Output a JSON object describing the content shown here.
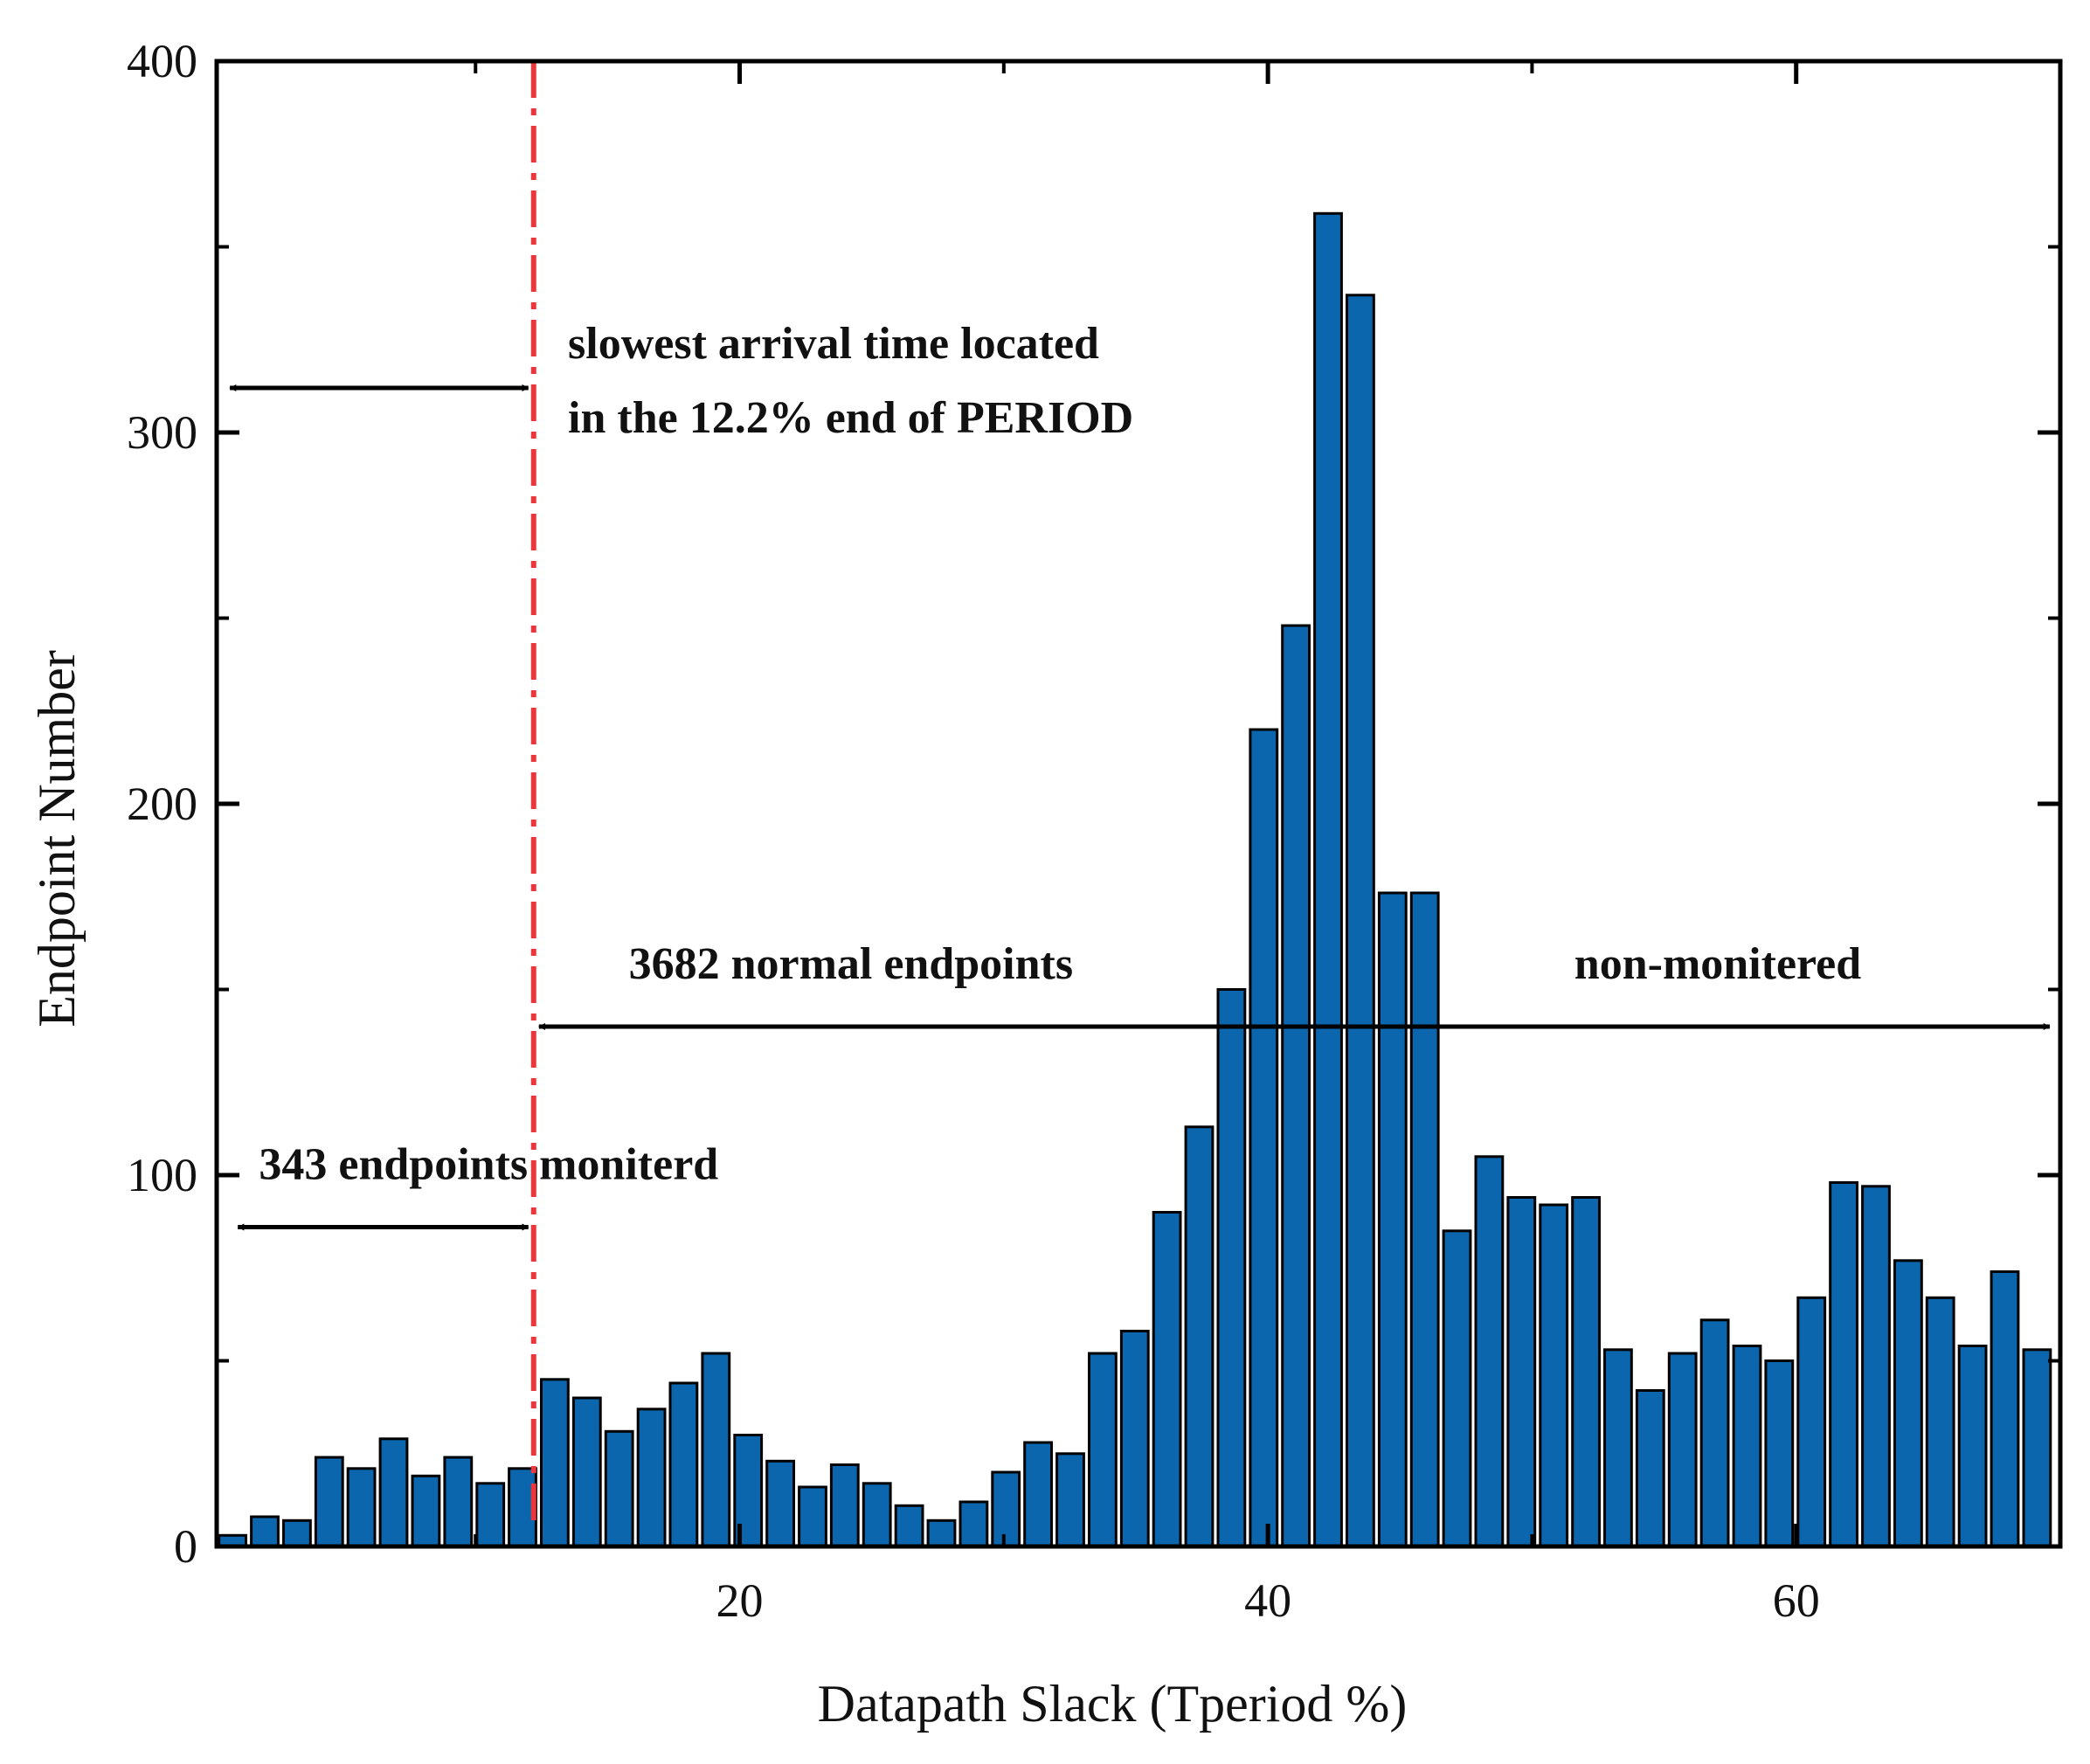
{
  "chart_data": {
    "type": "bar",
    "title": "",
    "xlabel": "Datapath Slack (Tperiod %)",
    "ylabel": "Endpoint Number",
    "xlim": [
      0.2,
      70
    ],
    "ylim": [
      0,
      400
    ],
    "x_ticks": [
      20,
      40,
      60
    ],
    "y_ticks": [
      0,
      100,
      200,
      300,
      400
    ],
    "bin_width": 1.22,
    "bin_start": 0.8,
    "values": [
      3,
      8,
      7,
      24,
      21,
      29,
      19,
      24,
      17,
      21,
      45,
      40,
      31,
      37,
      44,
      52,
      30,
      23,
      16,
      22,
      17,
      11,
      7,
      12,
      20,
      28,
      25,
      52,
      58,
      90,
      113,
      150,
      220,
      248,
      359,
      337,
      176,
      176,
      85,
      105,
      94,
      92,
      94,
      53,
      42,
      52,
      61,
      54,
      50,
      67,
      98,
      97,
      77,
      67,
      54,
      74,
      53
    ],
    "colors": {
      "bar": "#0b66ad",
      "threshold": "#e8383d",
      "axis": "#000000"
    },
    "threshold": {
      "x": 12.2,
      "style": "dash-dot"
    },
    "annotations": [
      {
        "text": "slowest arrival time located",
        "x": 13.5,
        "y": 320
      },
      {
        "text": "in the 12.2% end of PERIOD",
        "x": 13.5,
        "y": 300
      },
      {
        "text": "3682 normal endpoints",
        "x": 15.8,
        "y": 153
      },
      {
        "text": "non-monitered",
        "x": 51.6,
        "y": 153
      },
      {
        "text": "343 endpoints moniterd",
        "x": 1.8,
        "y": 99
      }
    ],
    "arrows": [
      {
        "from": [
          0.7,
          312
        ],
        "to": [
          12.0,
          312
        ],
        "heads": "both"
      },
      {
        "from": [
          12.4,
          140
        ],
        "to": [
          69.6,
          140
        ],
        "heads": "both"
      },
      {
        "from": [
          1.0,
          86
        ],
        "to": [
          12.0,
          86
        ],
        "heads": "both"
      }
    ]
  }
}
